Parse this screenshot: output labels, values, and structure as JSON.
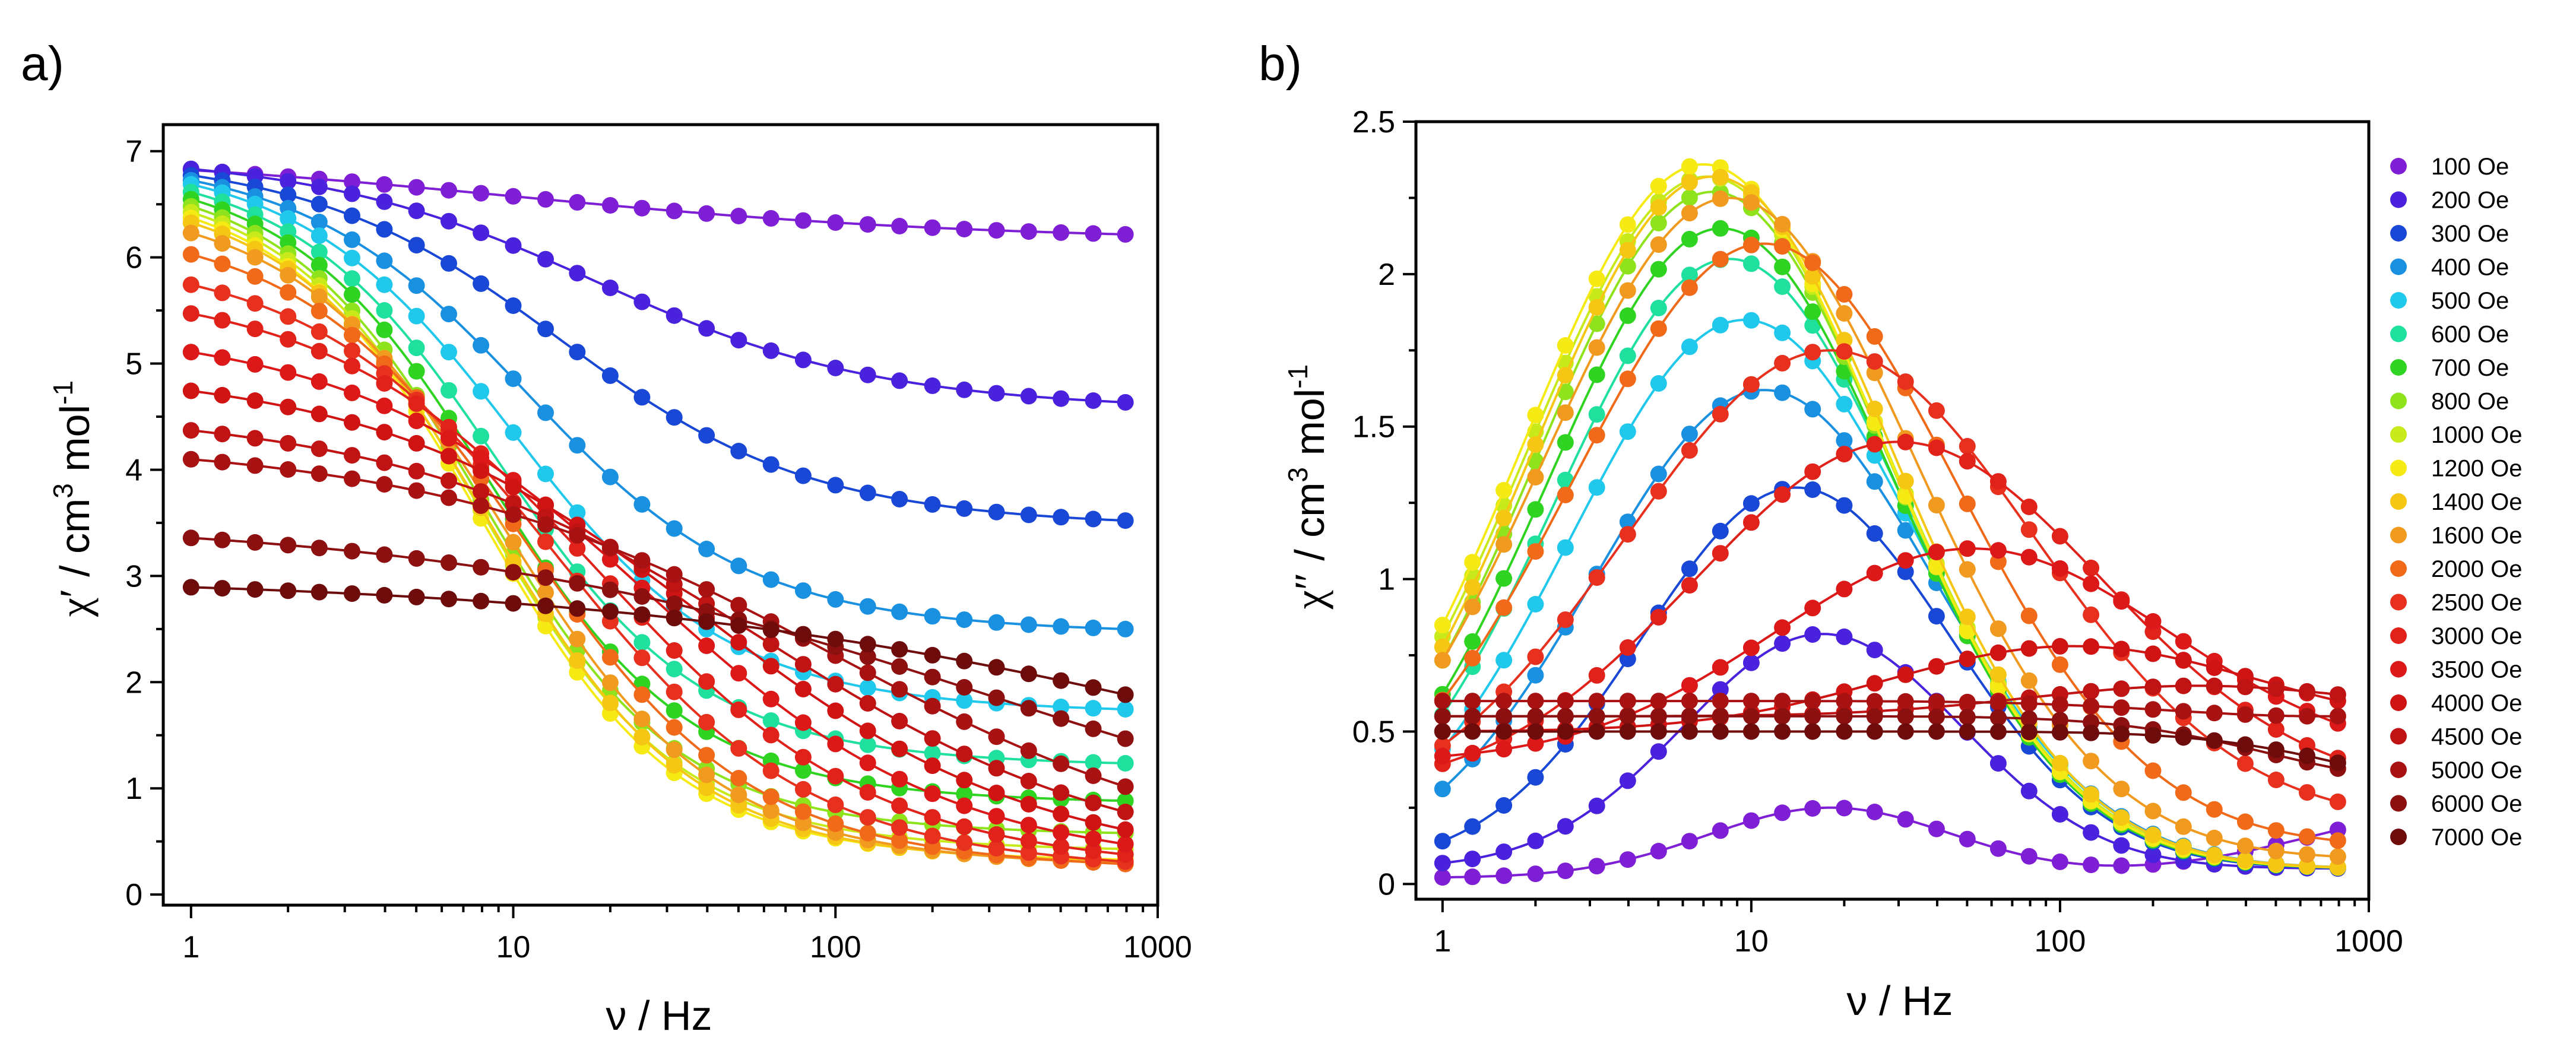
{
  "chart_data": [
    {
      "panel_label": "a)",
      "type": "scatter",
      "xscale": "log",
      "xlim": [
        0.82,
        1000
      ],
      "ylim": [
        -0.1,
        7.25
      ],
      "xticks": [
        {
          "v": 1,
          "label": "1"
        },
        {
          "v": 10,
          "label": "10"
        },
        {
          "v": 100,
          "label": "100"
        },
        {
          "v": 1000,
          "label": "1000"
        }
      ],
      "yticks": [
        {
          "v": 0,
          "label": "0"
        },
        {
          "v": 1,
          "label": "1"
        },
        {
          "v": 2,
          "label": "2"
        },
        {
          "v": 3,
          "label": "3"
        },
        {
          "v": 4,
          "label": "4"
        },
        {
          "v": 5,
          "label": "5"
        },
        {
          "v": 6,
          "label": "6"
        },
        {
          "v": 7,
          "label": "7"
        }
      ],
      "xlabel": "ν / Hz",
      "ylabel": {
        "symbol": "χ′",
        "sep": " / ",
        "unit_main": "cm",
        "unit_sup1": "3",
        "unit_mid": " mol",
        "unit_sup2": "-1"
      },
      "x": [
        1,
        1.25,
        1.58,
        2,
        2.5,
        3.16,
        3.98,
        5.01,
        6.31,
        7.94,
        10,
        12.6,
        15.8,
        20,
        25.1,
        31.6,
        39.8,
        50.1,
        63.1,
        79.4,
        100,
        126,
        158,
        200,
        251,
        316,
        398,
        501,
        631,
        794
      ],
      "series": [
        {
          "name": "100 Oe",
          "color": "#7e1fd6",
          "chi0": 7.0,
          "chiS": 6.15,
          "tau_hz": 10,
          "alpha": 0.5
        },
        {
          "name": "200 Oe",
          "color": "#4a22dd",
          "chi0": 7.0,
          "chiS": 4.55,
          "tau_hz": 18,
          "alpha": 0.3
        },
        {
          "name": "300 Oe",
          "color": "#1947d6",
          "chi0": 7.0,
          "chiS": 3.45,
          "tau_hz": 14,
          "alpha": 0.25
        },
        {
          "name": "400 Oe",
          "color": "#1a90e0",
          "chi0": 7.0,
          "chiS": 2.45,
          "tau_hz": 11,
          "alpha": 0.2
        },
        {
          "name": "500 Oe",
          "color": "#20c8ec",
          "chi0": 7.0,
          "chiS": 1.7,
          "tau_hz": 10,
          "alpha": 0.18
        },
        {
          "name": "600 Oe",
          "color": "#1fe09c",
          "chi0": 6.95,
          "chiS": 1.2,
          "tau_hz": 9,
          "alpha": 0.16
        },
        {
          "name": "700 Oe",
          "color": "#2fd321",
          "chi0": 6.9,
          "chiS": 0.85,
          "tau_hz": 8.5,
          "alpha": 0.15
        },
        {
          "name": "800 Oe",
          "color": "#8fe31c",
          "chi0": 6.85,
          "chiS": 0.55,
          "tau_hz": 8,
          "alpha": 0.14
        },
        {
          "name": "1000 Oe",
          "color": "#c8ea1a",
          "chi0": 6.8,
          "chiS": 0.4,
          "tau_hz": 8,
          "alpha": 0.14
        },
        {
          "name": "1200 Oe",
          "color": "#f5ea14",
          "chi0": 6.75,
          "chiS": 0.3,
          "tau_hz": 8,
          "alpha": 0.14
        },
        {
          "name": "1400 Oe",
          "color": "#f5c614",
          "chi0": 6.7,
          "chiS": 0.28,
          "tau_hz": 8.5,
          "alpha": 0.15
        },
        {
          "name": "1600 Oe",
          "color": "#f09a20",
          "chi0": 6.6,
          "chiS": 0.25,
          "tau_hz": 9.5,
          "alpha": 0.17
        },
        {
          "name": "2000 Oe",
          "color": "#f06a1a",
          "chi0": 6.4,
          "chiS": 0.22,
          "tau_hz": 11,
          "alpha": 0.2
        },
        {
          "name": "2500 Oe",
          "color": "#e8301e",
          "chi0": 6.1,
          "chiS": 0.2,
          "tau_hz": 14,
          "alpha": 0.24
        },
        {
          "name": "3000 Oe",
          "color": "#e0221a",
          "chi0": 5.8,
          "chiS": 0.2,
          "tau_hz": 19,
          "alpha": 0.28
        },
        {
          "name": "3500 Oe",
          "color": "#dc1818",
          "chi0": 5.4,
          "chiS": 0.2,
          "tau_hz": 27,
          "alpha": 0.32
        },
        {
          "name": "4000 Oe",
          "color": "#d01414",
          "chi0": 5.0,
          "chiS": 0.2,
          "tau_hz": 40,
          "alpha": 0.36
        },
        {
          "name": "4500 Oe",
          "color": "#c01414",
          "chi0": 4.6,
          "chiS": 0.2,
          "tau_hz": 60,
          "alpha": 0.4
        },
        {
          "name": "5000 Oe",
          "color": "#a81212",
          "chi0": 4.3,
          "chiS": 0.2,
          "tau_hz": 100,
          "alpha": 0.44
        },
        {
          "name": "6000 Oe",
          "color": "#8c1010",
          "chi0": 3.55,
          "chiS": 0.2,
          "tau_hz": 300,
          "alpha": 0.55
        },
        {
          "name": "7000 Oe",
          "color": "#6e0c0c",
          "chi0": 3.0,
          "chiS": 0.2,
          "tau_hz": 2000,
          "alpha": 0.6
        }
      ]
    },
    {
      "panel_label": "b)",
      "type": "scatter",
      "xscale": "log",
      "xlim": [
        0.82,
        1000
      ],
      "ylim": [
        -0.05,
        2.5
      ],
      "xticks": [
        {
          "v": 1,
          "label": "1"
        },
        {
          "v": 10,
          "label": "10"
        },
        {
          "v": 100,
          "label": "100"
        },
        {
          "v": 1000,
          "label": "1000"
        }
      ],
      "yticks": [
        {
          "v": 0,
          "label": "0"
        },
        {
          "v": 0.5,
          "label": "0.5"
        },
        {
          "v": 1,
          "label": "1"
        },
        {
          "v": 1.5,
          "label": "1.5"
        },
        {
          "v": 2,
          "label": "2"
        },
        {
          "v": 2.5,
          "label": "2.5"
        }
      ],
      "xlabel": "ν / Hz",
      "ylabel": {
        "symbol": "χ″",
        "sep": " / ",
        "unit_main": "cm",
        "unit_sup1": "3",
        "unit_mid": " mol",
        "unit_sup2": "-1"
      },
      "legend_position": "right",
      "x": [
        1,
        1.25,
        1.58,
        2,
        2.5,
        3.16,
        3.98,
        5.01,
        6.31,
        7.94,
        10,
        12.6,
        15.8,
        20,
        25.1,
        31.6,
        39.8,
        50.1,
        63.1,
        79.4,
        100,
        126,
        158,
        200,
        251,
        316,
        398,
        501,
        631,
        794
      ],
      "series": [
        {
          "name": "100 Oe",
          "color": "#7e1fd6",
          "base": 0.02,
          "rise": 0.18,
          "hf_center": 3000,
          "hf_width": 0.6,
          "hf_amp": 0.25,
          "peak": 0.25,
          "peak_hz": 18,
          "width": 0.4
        },
        {
          "name": "200 Oe",
          "color": "#4a22dd",
          "base": 0.05,
          "rise": 0.0,
          "hf_center": 3000,
          "hf_width": 0.6,
          "hf_amp": 0.0,
          "peak": 0.82,
          "peak_hz": 17,
          "width": 0.45
        },
        {
          "name": "300 Oe",
          "color": "#1947d6",
          "base": 0.05,
          "rise": 0.0,
          "hf_center": 3000,
          "hf_width": 0.6,
          "hf_amp": 0.0,
          "peak": 1.3,
          "peak_hz": 14,
          "width": 0.5
        },
        {
          "name": "400 Oe",
          "color": "#1a90e0",
          "base": 0.05,
          "rise": 0.0,
          "hf_center": 3000,
          "hf_width": 0.6,
          "hf_amp": 0.0,
          "peak": 1.62,
          "peak_hz": 11,
          "width": 0.55
        },
        {
          "name": "500 Oe",
          "color": "#20c8ec",
          "base": 0.05,
          "rise": 0.0,
          "hf_center": 3000,
          "hf_width": 0.6,
          "hf_amp": 0.0,
          "peak": 1.85,
          "peak_hz": 9.5,
          "width": 0.56
        },
        {
          "name": "600 Oe",
          "color": "#1fe09c",
          "base": 0.05,
          "rise": 0.0,
          "hf_center": 3000,
          "hf_width": 0.6,
          "hf_amp": 0.0,
          "peak": 2.05,
          "peak_hz": 8.5,
          "width": 0.56
        },
        {
          "name": "700 Oe",
          "color": "#2fd321",
          "base": 0.05,
          "rise": 0.0,
          "hf_center": 3000,
          "hf_width": 0.6,
          "hf_amp": 0.0,
          "peak": 2.15,
          "peak_hz": 8,
          "width": 0.56
        },
        {
          "name": "800 Oe",
          "color": "#8fe31c",
          "base": 0.05,
          "rise": 0.0,
          "hf_center": 3000,
          "hf_width": 0.6,
          "hf_amp": 0.0,
          "peak": 2.27,
          "peak_hz": 7.5,
          "width": 0.57
        },
        {
          "name": "1000 Oe",
          "color": "#c8ea1a",
          "base": 0.05,
          "rise": 0.0,
          "hf_center": 3000,
          "hf_width": 0.6,
          "hf_amp": 0.0,
          "peak": 2.32,
          "peak_hz": 7.2,
          "width": 0.58
        },
        {
          "name": "1200 Oe",
          "color": "#f5ea14",
          "base": 0.05,
          "rise": 0.0,
          "hf_center": 3000,
          "hf_width": 0.6,
          "hf_amp": 0.0,
          "peak": 2.36,
          "peak_hz": 7.0,
          "width": 0.58
        },
        {
          "name": "1400 Oe",
          "color": "#f5c614",
          "base": 0.05,
          "rise": 0.0,
          "hf_center": 3000,
          "hf_width": 0.6,
          "hf_amp": 0.0,
          "peak": 2.32,
          "peak_hz": 7.5,
          "width": 0.58
        },
        {
          "name": "1600 Oe",
          "color": "#f09a20",
          "base": 0.08,
          "rise": 0.0,
          "hf_center": 3000,
          "hf_width": 0.6,
          "hf_amp": 0.0,
          "peak": 2.25,
          "peak_hz": 8.5,
          "width": 0.6
        },
        {
          "name": "2000 Oe",
          "color": "#f06a1a",
          "base": 0.12,
          "rise": 0.0,
          "hf_center": 3000,
          "hf_width": 0.6,
          "hf_amp": 0.0,
          "peak": 2.1,
          "peak_hz": 11,
          "width": 0.62
        },
        {
          "name": "2500 Oe",
          "color": "#e8301e",
          "base": 0.2,
          "rise": 0.0,
          "hf_center": 3000,
          "hf_width": 0.6,
          "hf_amp": 0.0,
          "peak": 1.75,
          "peak_hz": 18,
          "width": 0.66
        },
        {
          "name": "3000 Oe",
          "color": "#e0221a",
          "base": 0.3,
          "rise": 0.0,
          "hf_center": 3000,
          "hf_width": 0.6,
          "hf_amp": 0.0,
          "peak": 1.45,
          "peak_hz": 30,
          "width": 0.66
        },
        {
          "name": "3500 Oe",
          "color": "#dc1818",
          "base": 0.4,
          "rise": 0.0,
          "hf_center": 3000,
          "hf_width": 0.6,
          "hf_amp": 0.0,
          "peak": 1.1,
          "peak_hz": 52,
          "width": 0.64
        },
        {
          "name": "4000 Oe",
          "color": "#d01414",
          "base": 0.5,
          "rise": 0.0,
          "hf_center": 3000,
          "hf_width": 0.6,
          "hf_amp": 0.0,
          "peak": 0.78,
          "peak_hz": 110,
          "width": 0.6
        },
        {
          "name": "4500 Oe",
          "color": "#c01414",
          "base": 0.55,
          "rise": 0.0,
          "hf_center": 3000,
          "hf_width": 0.6,
          "hf_amp": 0.0,
          "peak": 0.65,
          "peak_hz": 280,
          "width": 0.55
        },
        {
          "name": "5000 Oe",
          "color": "#a81212",
          "base": 0.6,
          "rise": 0.0,
          "hf_center": 3000,
          "hf_width": 0.6,
          "hf_amp": 0.0,
          "peak": 0.55,
          "peak_hz": 700,
          "width": 0.5
        },
        {
          "name": "6000 Oe",
          "color": "#8c1010",
          "base": 0.55,
          "rise": 0.0,
          "hf_center": 3000,
          "hf_width": 0.6,
          "hf_amp": 0.0,
          "peak": 0.35,
          "peak_hz": 1500,
          "width": 0.5
        },
        {
          "name": "7000 Oe",
          "color": "#6e0c0c",
          "base": 0.5,
          "rise": 0.0,
          "hf_center": 3000,
          "hf_width": 0.6,
          "hf_amp": 0.0,
          "peak": 0.3,
          "peak_hz": 3000,
          "width": 0.5
        }
      ]
    }
  ]
}
